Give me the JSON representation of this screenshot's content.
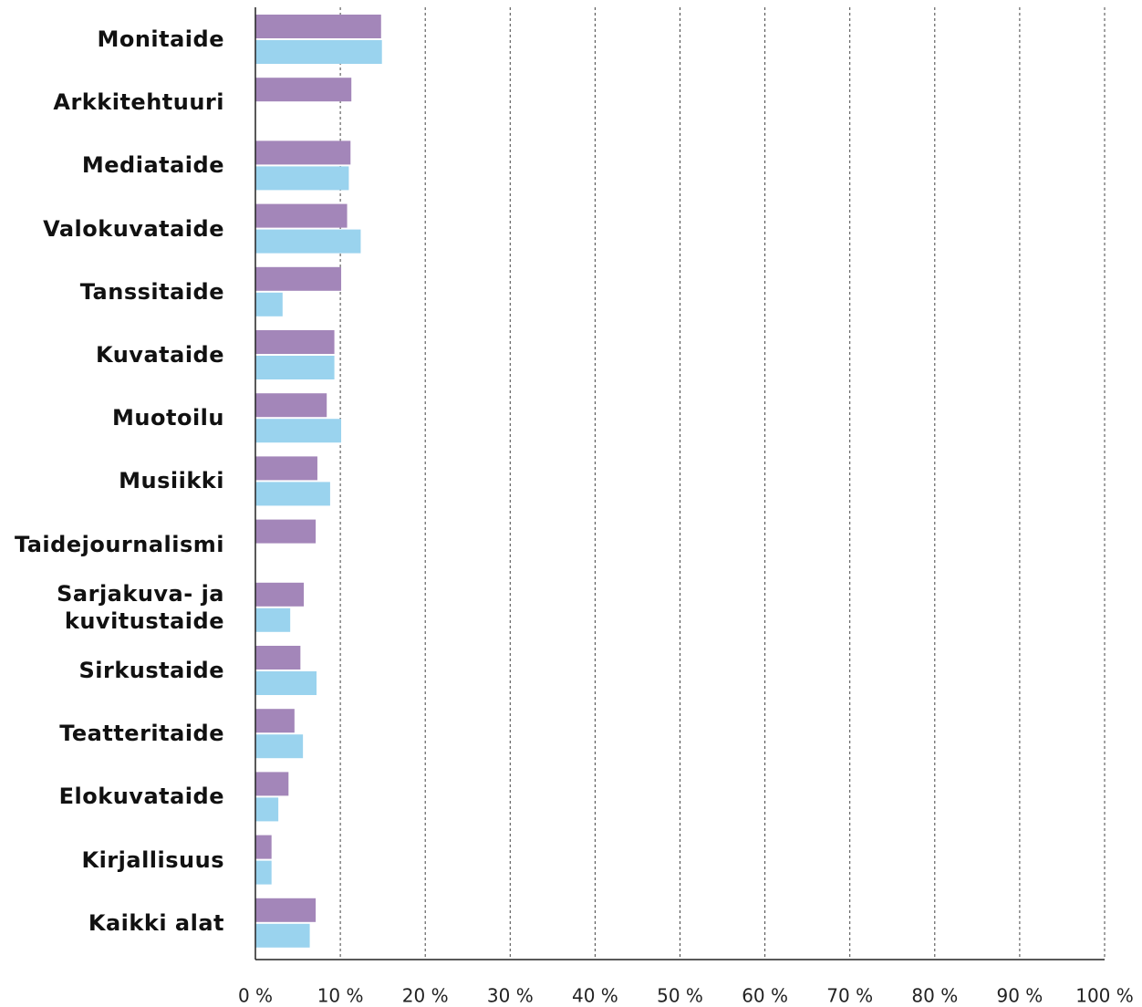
{
  "chart_data": {
    "type": "hbar",
    "categories": [
      "Monitaide",
      "Arkkitehtuuri",
      "Mediataide",
      "Valokuvataide",
      "Tanssitaide",
      "Kuvataide",
      "Muotoilu",
      "Musiikki",
      "Taidejournalismi",
      "Sarjakuva- ja kuvitustaide",
      "Sirkustaide",
      "Teatteritaide",
      "Elokuvataide",
      "Kirjallisuus",
      "Kaikki alat"
    ],
    "series": [
      {
        "color": "#a386b9",
        "values": [
          14.8,
          11.3,
          11.2,
          10.8,
          10.1,
          9.3,
          8.4,
          7.3,
          7.1,
          5.7,
          5.3,
          4.6,
          3.9,
          1.9,
          7.1
        ]
      },
      {
        "color": "#9ad3ee",
        "values": [
          14.9,
          null,
          11.0,
          12.4,
          3.2,
          9.3,
          10.1,
          8.8,
          null,
          4.1,
          7.2,
          5.6,
          2.7,
          1.9,
          6.4
        ]
      }
    ],
    "xlim": [
      0,
      100
    ],
    "xticks": [
      {
        "value": 0,
        "label": "0 %"
      },
      {
        "value": 10,
        "label": "10 %"
      },
      {
        "value": 20,
        "label": "20 %"
      },
      {
        "value": 30,
        "label": "30 %"
      },
      {
        "value": 40,
        "label": "40 %"
      },
      {
        "value": 50,
        "label": "50 %"
      },
      {
        "value": 60,
        "label": "60 %"
      },
      {
        "value": 70,
        "label": "70 %"
      },
      {
        "value": 80,
        "label": "80 %"
      },
      {
        "value": 90,
        "label": "90 %"
      },
      {
        "value": 100,
        "label": "100 %"
      }
    ],
    "grid": true
  }
}
